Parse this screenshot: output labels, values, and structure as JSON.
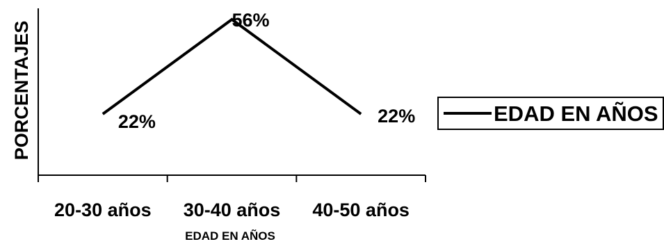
{
  "chart_data": {
    "type": "line",
    "categories": [
      "20-30 años",
      "30-40 años",
      "40-50 años"
    ],
    "series": [
      {
        "name": "EDAD EN AÑOS",
        "values": [
          22,
          56,
          22
        ],
        "labels": [
          "22%",
          "56%",
          "22%"
        ],
        "color": "#000000"
      }
    ],
    "title": "",
    "xlabel": "EDAD EN AÑOS",
    "ylabel": "PORCENTAJES",
    "ylim": [
      0,
      60
    ],
    "grid": false,
    "legend_position": "right"
  }
}
